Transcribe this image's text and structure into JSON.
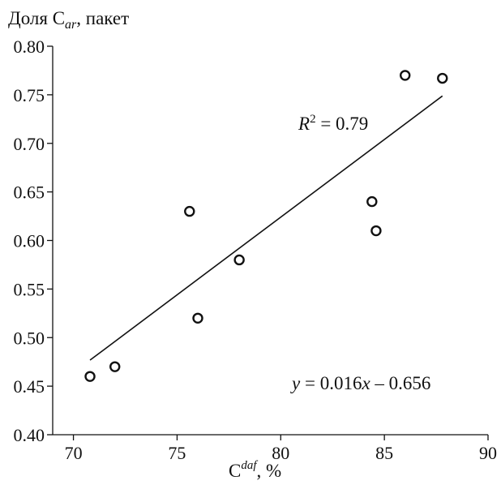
{
  "chart_data": {
    "type": "scatter",
    "ylabel": {
      "main": "Доля C",
      "sub": "ar",
      "suffix": ", пакет"
    },
    "xlabel": {
      "main": "C",
      "sup": "daf",
      "suffix": ", %"
    },
    "xlim": [
      69,
      90
    ],
    "ylim": [
      0.4,
      0.8
    ],
    "x_ticks": [
      70,
      75,
      80,
      85,
      90
    ],
    "x_tick_labels": [
      "70",
      "75",
      "80",
      "85",
      "90"
    ],
    "y_ticks": [
      0.4,
      0.45,
      0.5,
      0.55,
      0.6,
      0.65,
      0.7,
      0.75,
      0.8
    ],
    "y_tick_labels": [
      "0.40",
      "0.45",
      "0.50",
      "0.55",
      "0.60",
      "0.65",
      "0.70",
      "0.75",
      "0.80"
    ],
    "grid": false,
    "points": [
      {
        "x": 70.8,
        "y": 0.46
      },
      {
        "x": 72.0,
        "y": 0.47
      },
      {
        "x": 75.6,
        "y": 0.63
      },
      {
        "x": 76.0,
        "y": 0.52
      },
      {
        "x": 78.0,
        "y": 0.58
      },
      {
        "x": 84.4,
        "y": 0.64
      },
      {
        "x": 84.6,
        "y": 0.61
      },
      {
        "x": 86.0,
        "y": 0.77
      },
      {
        "x": 87.8,
        "y": 0.767
      }
    ],
    "fit_line": {
      "x_start": 70.8,
      "x_end": 87.8,
      "slope": 0.016,
      "intercept": -0.656
    },
    "annotations": {
      "r2": {
        "sym": "R",
        "sup": "2",
        "rest": " = 0.79"
      },
      "equation": {
        "y": "y",
        "mid": " = 0.016",
        "x": "x",
        "rest": " – 0.656"
      }
    }
  }
}
